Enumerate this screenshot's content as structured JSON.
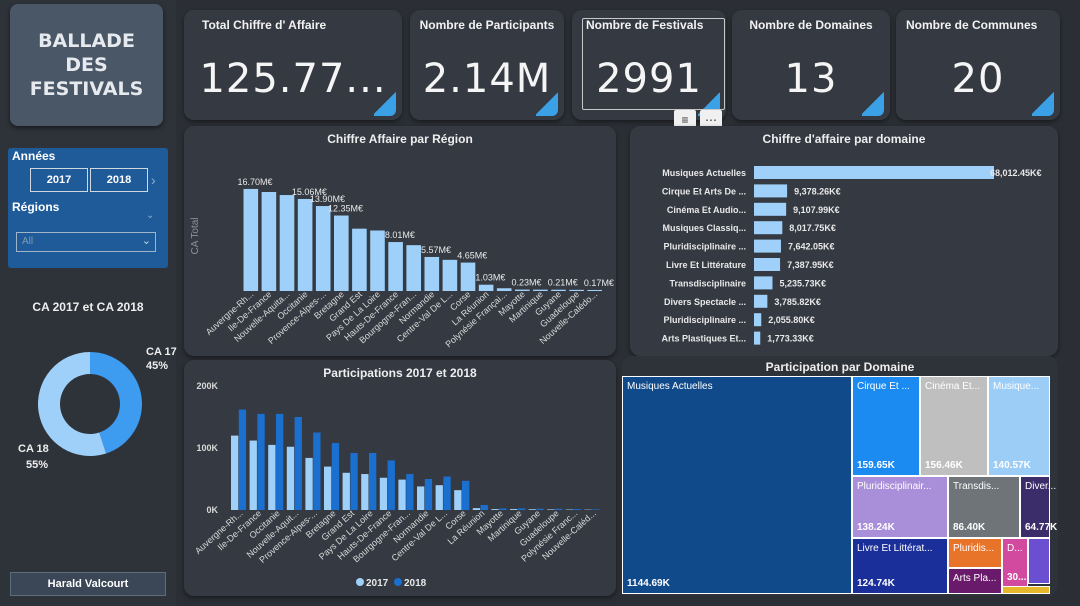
{
  "logo": {
    "text": "BALLADE\nDES\nFESTIVALS"
  },
  "kpis": [
    {
      "title": "Total Chiffre d' Affaire",
      "value": "125.77..."
    },
    {
      "title": "Nombre de Participants",
      "value": "2.14M"
    },
    {
      "title": "Nombre de Festivals",
      "value": "2991"
    },
    {
      "title": "Nombre de Domaines",
      "value": "13"
    },
    {
      "title": "Nombre de Communes",
      "value": "20"
    }
  ],
  "filters": {
    "years_label": "Années",
    "years": [
      "2017",
      "2018"
    ],
    "regions_label": "Régions",
    "regions_value": "All"
  },
  "user": {
    "name": "Harald Valcourt"
  },
  "colors": {
    "light": "#9ed0fa",
    "dark": "#1a6fcf",
    "mid": "#3d9bf0",
    "panel": "#353a42"
  },
  "chart_data": [
    {
      "type": "bar",
      "title": "Chiffre Affaire par Région",
      "ylabel": "CA Total",
      "categories": [
        "Auvergne-Rh...",
        "Ile-De-France",
        "Nouvelle-Aquita...",
        "Occitanie",
        "Provence-Alpes-...",
        "Bretagne",
        "Grand Est",
        "Pays De La Loire",
        "Hauts-De-France",
        "Bourgogne-Fran...",
        "Normandie",
        "Centre-Val De L...",
        "Corse",
        "La Réunion",
        "Polynésie Françai...",
        "Mayotte",
        "Martinique",
        "Guyane",
        "Guadeloupe",
        "Nouvelle-Calédo..."
      ],
      "values": [
        16.7,
        16.2,
        15.7,
        15.06,
        13.9,
        12.35,
        10.2,
        9.9,
        8.01,
        7.5,
        5.57,
        5.1,
        4.65,
        1.03,
        0.45,
        0.23,
        0.22,
        0.21,
        0.19,
        0.17
      ],
      "data_labels": {
        "0": "16.70M€",
        "3": "15.06M€",
        "4": "13.90M€",
        "5": "12.35M€",
        "8": "8.01M€",
        "10": "5.57M€",
        "12": "4.65M€",
        "13": "1.03M€",
        "15": "0.23M€",
        "17": "0.21M€",
        "19": "0.17M€"
      },
      "ylim": [
        0,
        18
      ]
    },
    {
      "type": "bar",
      "title": "Chiffre d'affaire par domaine",
      "orientation": "horizontal",
      "categories": [
        "Musiques Actuelles",
        "Cirque Et Arts De ...",
        "Cinéma Et Audio...",
        "Musiques Classiq...",
        "Pluridisciplinaire ...",
        "Livre Et Littérature",
        "Transdisciplinaire",
        "Divers Spectacle ...",
        "Pluridisciplinaire ...",
        "Arts Plastiques Et..."
      ],
      "values": [
        68012.45,
        9378.26,
        9107.99,
        8017.75,
        7642.05,
        7387.95,
        5235.73,
        3785.82,
        2055.8,
        1773.33
      ],
      "labels": [
        "68,012.45K€",
        "9,378.26K€",
        "9,107.99K€",
        "8,017.75K€",
        "7,642.05K€",
        "7,387.95K€",
        "5,235.73K€",
        "3,785.82K€",
        "2,055.80K€",
        "1,773.33K€"
      ]
    },
    {
      "type": "bar",
      "title": "Participations 2017 et 2018",
      "categories": [
        "Auvergne-Rh...",
        "Ile-De-France",
        "Occitanie",
        "Nouvelle-Aquit...",
        "Provence-Alpes-...",
        "Bretagne",
        "Grand Est",
        "Pays De La Loire",
        "Hauts-De-France",
        "Bourgogne-Fran...",
        "Normandie",
        "Centre-Val De L...",
        "Corse",
        "La Réunion",
        "Mayotte",
        "Martinique",
        "Guyane",
        "Guadeloupe",
        "Polynésie Franc...",
        "Nouvelle-Caléd..."
      ],
      "series": [
        {
          "name": "2017",
          "values": [
            120000,
            112000,
            105000,
            102000,
            84000,
            70000,
            60000,
            58000,
            52000,
            49000,
            38000,
            40000,
            32000,
            3000,
            1500,
            1500,
            1200,
            1000,
            800,
            600
          ]
        },
        {
          "name": "2018",
          "values": [
            162000,
            155000,
            155000,
            150000,
            125000,
            108000,
            92000,
            92000,
            80000,
            58000,
            50000,
            54000,
            47000,
            8000,
            2500,
            2500,
            2000,
            2000,
            1500,
            1000
          ]
        }
      ],
      "yticks": [
        "0K",
        "100K",
        "200K"
      ],
      "ylim": [
        0,
        200000
      ]
    },
    {
      "type": "pie",
      "title": "CA 2017 et CA 2018",
      "slices": [
        {
          "name": "CA 17",
          "value": 45,
          "label": "45%"
        },
        {
          "name": "CA 18",
          "value": 55,
          "label": "55%"
        }
      ]
    },
    {
      "type": "treemap",
      "title": "Participation par Domaine",
      "items": [
        {
          "name": "Musiques Actuelles",
          "value": "1144.69K",
          "color": "#114a8a"
        },
        {
          "name": "Cirque Et ...",
          "value": "159.65K",
          "color": "#1b8bf2"
        },
        {
          "name": "Cinéma Et...",
          "value": "156.46K",
          "color": "#bfbfbf"
        },
        {
          "name": "Musique...",
          "value": "140.57K",
          "color": "#9ccdf7"
        },
        {
          "name": "Pluridisciplinair...",
          "value": "138.24K",
          "color": "#a98ed9"
        },
        {
          "name": "Transdis...",
          "value": "86.40K",
          "color": "#6e7478"
        },
        {
          "name": "Diver...",
          "value": "64.77K",
          "color": "#3a2d6a"
        },
        {
          "name": "Livre Et Littérat...",
          "value": "124.74K",
          "color": "#1b2f9a"
        },
        {
          "name": "Pluridis...",
          "value": "",
          "color": "#e8742a"
        },
        {
          "name": "D...",
          "value": "30...",
          "color": "#d24aa0"
        },
        {
          "name": "Arts Pla...",
          "value": "",
          "color": "#6a1a6a"
        }
      ]
    }
  ]
}
